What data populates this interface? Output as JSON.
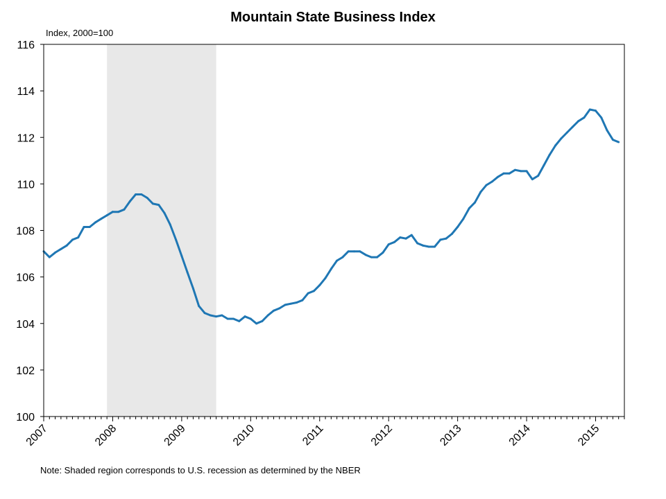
{
  "chart_data": {
    "type": "line",
    "title": "Mountain State Business Index",
    "ylabel": "Index, 2000=100",
    "xlabel": "",
    "note": "Note: Shaded region corresponds to U.S. recession as determined by the NBER",
    "ylim": [
      100,
      116
    ],
    "yticks": [
      100,
      102,
      104,
      106,
      108,
      110,
      112,
      114,
      116
    ],
    "xlim": [
      2007.0,
      2015.417
    ],
    "xticks": [
      2007,
      2008,
      2009,
      2010,
      2011,
      2012,
      2013,
      2014,
      2015
    ],
    "grid": false,
    "recession": {
      "start": 2007.917,
      "end": 2009.5
    },
    "colors": {
      "line": "#1f77b4",
      "recession": "#e8e8e8",
      "axis": "#000000"
    },
    "series": [
      {
        "x": [
          2007.0,
          2007.083,
          2007.167,
          2007.25,
          2007.333,
          2007.417,
          2007.5,
          2007.583,
          2007.667,
          2007.75,
          2007.833,
          2007.917,
          2008.0,
          2008.083,
          2008.167,
          2008.25,
          2008.333,
          2008.417,
          2008.5,
          2008.583,
          2008.667,
          2008.75,
          2008.833,
          2008.917,
          2009.0,
          2009.083,
          2009.167,
          2009.25,
          2009.333,
          2009.417,
          2009.5,
          2009.583,
          2009.667,
          2009.75,
          2009.833,
          2009.917,
          2010.0,
          2010.083,
          2010.167,
          2010.25,
          2010.333,
          2010.417,
          2010.5,
          2010.583,
          2010.667,
          2010.75,
          2010.833,
          2010.917,
          2011.0,
          2011.083,
          2011.167,
          2011.25,
          2011.333,
          2011.417,
          2011.5,
          2011.583,
          2011.667,
          2011.75,
          2011.833,
          2011.917,
          2012.0,
          2012.083,
          2012.167,
          2012.25,
          2012.333,
          2012.417,
          2012.5,
          2012.583,
          2012.667,
          2012.75,
          2012.833,
          2012.917,
          2013.0,
          2013.083,
          2013.167,
          2013.25,
          2013.333,
          2013.417,
          2013.5,
          2013.583,
          2013.667,
          2013.75,
          2013.833,
          2013.917,
          2014.0,
          2014.083,
          2014.167,
          2014.25,
          2014.333,
          2014.417,
          2014.5,
          2014.583,
          2014.667,
          2014.75,
          2014.833,
          2014.917,
          2015.0,
          2015.083,
          2015.167,
          2015.25,
          2015.333
        ],
        "values": [
          107.1,
          106.85,
          107.05,
          107.2,
          107.35,
          107.6,
          107.7,
          108.15,
          108.15,
          108.35,
          108.5,
          108.65,
          108.8,
          108.8,
          108.9,
          109.25,
          109.55,
          109.55,
          109.4,
          109.15,
          109.1,
          108.75,
          108.25,
          107.6,
          106.9,
          106.2,
          105.5,
          104.75,
          104.45,
          104.35,
          104.3,
          104.35,
          104.2,
          104.2,
          104.1,
          104.3,
          104.2,
          104.0,
          104.1,
          104.35,
          104.55,
          104.65,
          104.8,
          104.85,
          104.9,
          105.0,
          105.3,
          105.4,
          105.65,
          105.95,
          106.35,
          106.7,
          106.85,
          107.1,
          107.1,
          107.1,
          106.95,
          106.85,
          106.85,
          107.05,
          107.4,
          107.5,
          107.7,
          107.65,
          107.8,
          107.45,
          107.35,
          107.3,
          107.3,
          107.6,
          107.65,
          107.85,
          108.15,
          108.5,
          108.95,
          109.2,
          109.65,
          109.95,
          110.1,
          110.3,
          110.45,
          110.45,
          110.6,
          110.55,
          110.55,
          110.2,
          110.35,
          110.8,
          111.25,
          111.65,
          111.95,
          112.2,
          112.45,
          112.7,
          112.85,
          113.2,
          113.15,
          112.85,
          112.3,
          111.9,
          111.8
        ]
      }
    ]
  }
}
